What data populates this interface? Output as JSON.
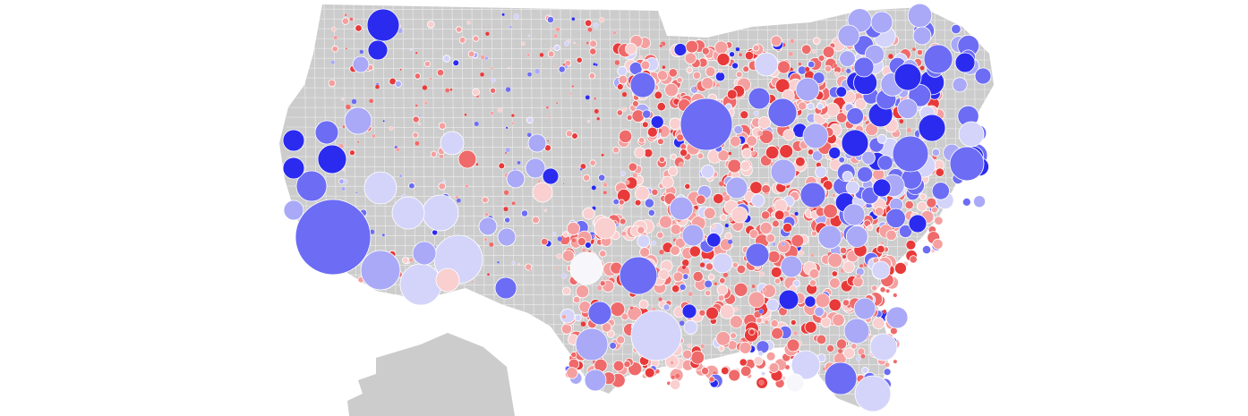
{
  "map": {
    "background": "#ffffff",
    "land_color": "#cccccc",
    "border_color": "#eeeeee",
    "colors": {
      "dem_strong": "#2b2bf0",
      "dem_medium": "#6c6cf4",
      "dem_light": "#a9a9f7",
      "dem_pale": "#d4d4fa",
      "neutral": "#f6f6fb",
      "rep_pale": "#f9cfcf",
      "rep_light": "#f5a0a0",
      "rep_medium": "#ef6a6a",
      "rep_strong": "#e83a3a"
    },
    "symbol": "circle",
    "regions": [
      "contiguous-us",
      "alaska"
    ]
  }
}
